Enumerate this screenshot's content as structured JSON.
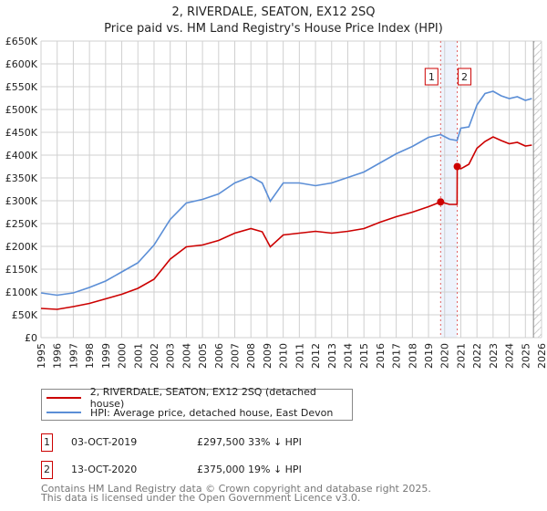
{
  "title": "2, RIVERDALE, SEATON, EX12 2SQ",
  "subtitle": "Price paid vs. HM Land Registry's House Price Index (HPI)",
  "chart_data": {
    "type": "line",
    "title": "2, RIVERDALE, SEATON, EX12 2SQ — Price paid vs. HM Land Registry's House Price Index (HPI)",
    "xlim": [
      1995,
      2026
    ],
    "ylim": [
      0,
      650000
    ],
    "yticks": [
      0,
      50000,
      100000,
      150000,
      200000,
      250000,
      300000,
      350000,
      400000,
      450000,
      500000,
      550000,
      600000,
      650000
    ],
    "ytick_labels": [
      "£0",
      "£50K",
      "£100K",
      "£150K",
      "£200K",
      "£250K",
      "£300K",
      "£350K",
      "£400K",
      "£450K",
      "£500K",
      "£550K",
      "£600K",
      "£650K"
    ],
    "xticks": [
      1995,
      1996,
      1997,
      1998,
      1999,
      2000,
      2001,
      2002,
      2003,
      2004,
      2005,
      2006,
      2007,
      2008,
      2009,
      2010,
      2011,
      2012,
      2013,
      2014,
      2015,
      2016,
      2017,
      2018,
      2019,
      2020,
      2021,
      2022,
      2023,
      2024,
      2025,
      2026
    ],
    "grid": true,
    "series": [
      {
        "name": "2, RIVERDALE, SEATON, EX12 2SQ (detached house)",
        "color": "#cc0000",
        "x": [
          1995,
          1996,
          1997,
          1998,
          1999,
          2000,
          2001,
          2002,
          2003,
          2004,
          2005,
          2006,
          2007,
          2008,
          2008.7,
          2009.2,
          2010,
          2011,
          2012,
          2013,
          2014,
          2015,
          2016,
          2017,
          2018,
          2019,
          2019.75,
          2020.3,
          2020.77,
          2020.78,
          2021,
          2021.5,
          2022,
          2022.5,
          2023,
          2023.5,
          2024,
          2024.5,
          2025,
          2025.4
        ],
        "y": [
          64000,
          62000,
          68000,
          75000,
          85000,
          95000,
          108000,
          128000,
          172000,
          199000,
          203000,
          213000,
          229000,
          239000,
          232000,
          199000,
          225000,
          229000,
          233000,
          229000,
          233000,
          239000,
          253000,
          265000,
          275000,
          287000,
          297500,
          292000,
          292000,
          375000,
          370000,
          380000,
          415000,
          430000,
          440000,
          432000,
          425000,
          428000,
          420000,
          422000
        ]
      },
      {
        "name": "HPI: Average price, detached house, East Devon",
        "color": "#5b8ed6",
        "x": [
          1995,
          1996,
          1997,
          1998,
          1999,
          2000,
          2001,
          2002,
          2003,
          2004,
          2005,
          2006,
          2007,
          2008,
          2008.7,
          2009.2,
          2010,
          2011,
          2012,
          2013,
          2014,
          2015,
          2016,
          2017,
          2018,
          2019,
          2019.75,
          2020.3,
          2020.77,
          2021,
          2021.5,
          2022,
          2022.5,
          2023,
          2023.5,
          2024,
          2024.5,
          2025,
          2025.4
        ],
        "y": [
          98000,
          93000,
          98000,
          110000,
          124000,
          144000,
          164000,
          203000,
          259000,
          295000,
          303000,
          315000,
          339000,
          353000,
          339000,
          299000,
          339000,
          339000,
          333000,
          339000,
          351000,
          363000,
          383000,
          403000,
          419000,
          439000,
          445000,
          435000,
          432000,
          459000,
          462000,
          510000,
          535000,
          540000,
          530000,
          524000,
          528000,
          520000,
          524000
        ]
      }
    ],
    "sales": [
      {
        "label": "1",
        "x": 2019.75,
        "y": 297500
      },
      {
        "label": "2",
        "x": 2020.78,
        "y": 375000
      }
    ],
    "shaded_period": [
      2019.75,
      2020.78
    ],
    "hatched_from": 2025.5
  },
  "legend": [
    {
      "label": "2, RIVERDALE, SEATON, EX12 2SQ (detached house)",
      "color": "#cc0000"
    },
    {
      "label": "HPI: Average price, detached house, East Devon",
      "color": "#5b8ed6"
    }
  ],
  "transactions": [
    {
      "num": "1",
      "date": "03-OCT-2019",
      "price": "£297,500",
      "hpi": "33% ↓ HPI"
    },
    {
      "num": "2",
      "date": "13-OCT-2020",
      "price": "£375,000",
      "hpi": "19% ↓ HPI"
    }
  ],
  "footer": [
    "Contains HM Land Registry data © Crown copyright and database right 2025.",
    "This data is licensed under the Open Government Licence v3.0."
  ]
}
